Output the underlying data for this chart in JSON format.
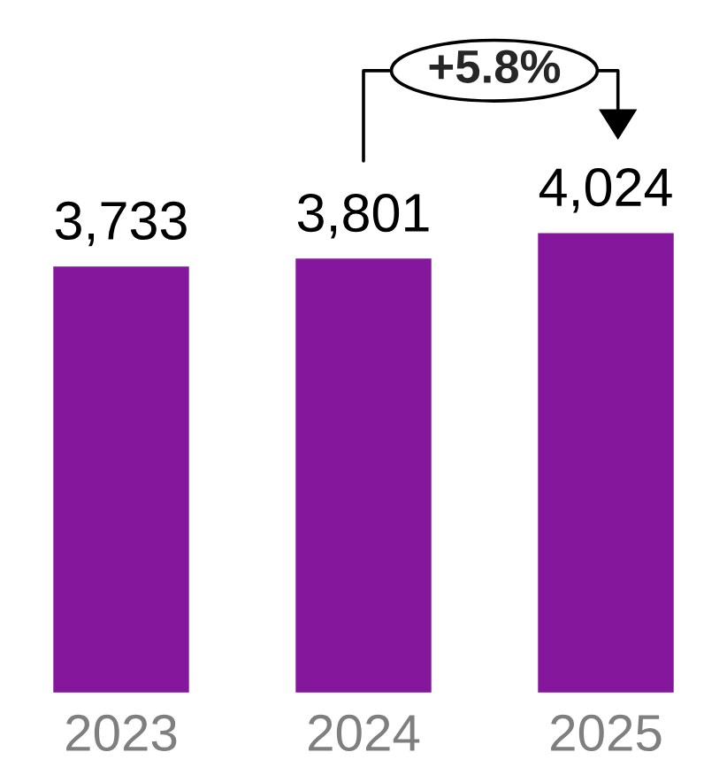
{
  "chart_data": {
    "type": "bar",
    "categories": [
      "2023",
      "2024",
      "2025"
    ],
    "values": [
      3733,
      3801,
      4024
    ],
    "value_labels": [
      "3,733",
      "3,801",
      "4,024"
    ],
    "color": "#84179b",
    "annotations": [
      "+5.8%"
    ],
    "grid": false,
    "legend": false,
    "tick_labels": "x"
  }
}
